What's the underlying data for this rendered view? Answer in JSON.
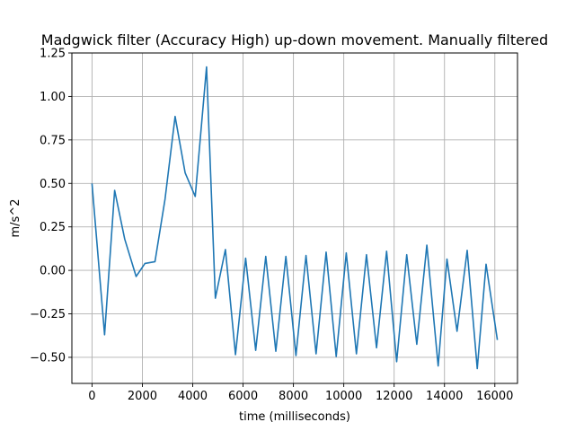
{
  "chart_data": {
    "type": "line",
    "title": "Madgwick filter (Accuracy High) up-down movement. Manually filtered",
    "xlabel": "time (milliseconds)",
    "ylabel": "m/s^2",
    "xlim": [
      -800,
      16900
    ],
    "ylim": [
      -0.65,
      1.25
    ],
    "xticks": [
      0,
      2000,
      4000,
      6000,
      8000,
      10000,
      12000,
      14000,
      16000
    ],
    "xtick_labels": [
      "0",
      "2000",
      "4000",
      "6000",
      "8000",
      "10000",
      "12000",
      "14000",
      "16000"
    ],
    "yticks": [
      -0.5,
      -0.25,
      0.0,
      0.25,
      0.5,
      0.75,
      1.0,
      1.25
    ],
    "ytick_labels": [
      "−0.50",
      "−0.25",
      "0.00",
      "0.25",
      "0.50",
      "0.75",
      "1.00",
      "1.25"
    ],
    "grid": true,
    "line_color": "#1f77b4",
    "series": [
      {
        "x": [
          0,
          500,
          900,
          1300,
          1750,
          2100,
          2500,
          2900,
          3300,
          3700,
          4100,
          4550,
          4900,
          5300,
          5700,
          6100,
          6500,
          6900,
          7300,
          7700,
          8100,
          8500,
          8900,
          9300,
          9700,
          10100,
          10500,
          10900,
          11300,
          11700,
          12100,
          12500,
          12900,
          13300,
          13750,
          14100,
          14500,
          14900,
          15300,
          15650,
          16100
        ],
        "y": [
          0.5,
          -0.37,
          0.46,
          0.18,
          -0.035,
          0.04,
          0.05,
          0.41,
          0.885,
          0.56,
          0.425,
          1.17,
          -0.16,
          0.12,
          -0.485,
          0.07,
          -0.46,
          0.08,
          -0.465,
          0.08,
          -0.49,
          0.085,
          -0.48,
          0.105,
          -0.495,
          0.1,
          -0.48,
          0.09,
          -0.445,
          0.11,
          -0.525,
          0.09,
          -0.425,
          0.145,
          -0.55,
          0.065,
          -0.35,
          0.115,
          -0.565,
          0.035,
          -0.4
        ]
      }
    ]
  }
}
